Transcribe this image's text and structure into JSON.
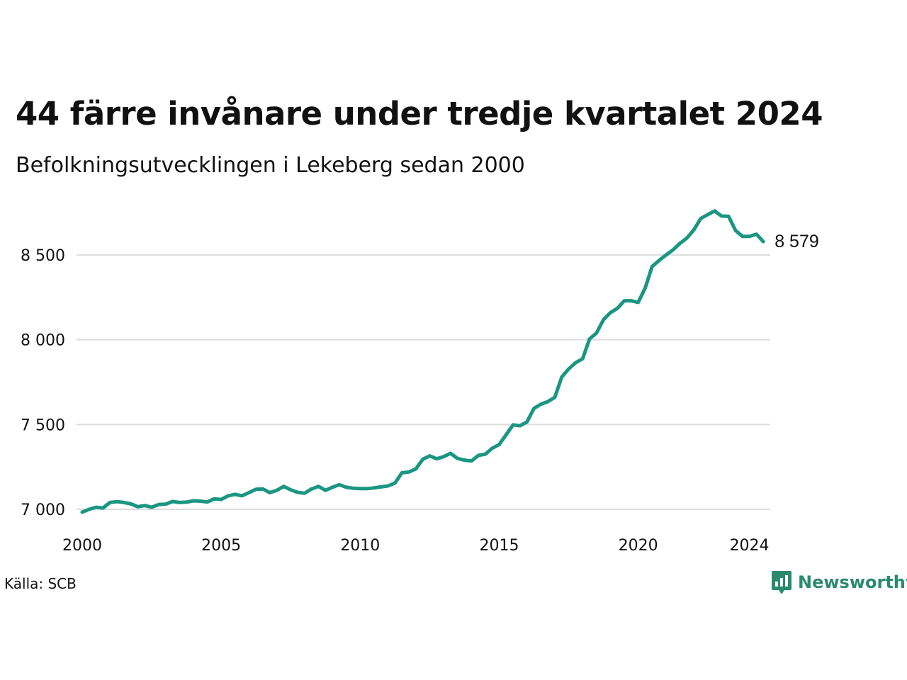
{
  "title": "44 färre invånare under tredje kvartalet 2024",
  "subtitle": "Befolkningsutvecklingen i Lekeberg sedan 2000",
  "source": "Källa: SCB",
  "brand": {
    "name": "Newsworthy",
    "icon": "newsworthy-logo-icon",
    "color": "#2b8a6e"
  },
  "chart_data": {
    "type": "line",
    "line_color": "#1a9682",
    "grid": true,
    "ylim": [
      6980,
      8760
    ],
    "yticks": [
      7000,
      7500,
      8000,
      8500
    ],
    "ytick_labels": [
      "7 000",
      "7 500",
      "8 000",
      "8 500"
    ],
    "xlim": [
      2000.0,
      2024.75
    ],
    "xticks": [
      2000,
      2005,
      2010,
      2015,
      2020,
      2024
    ],
    "xtick_labels": [
      "2000",
      "2005",
      "2010",
      "2015",
      "2020",
      "2024"
    ],
    "end_label": "8 579",
    "series": [
      {
        "start": 2000.0,
        "step": 0.25,
        "values": [
          6983,
          7000,
          7012,
          7008,
          7040,
          7045,
          7040,
          7032,
          7015,
          7022,
          7012,
          7028,
          7030,
          7046,
          7040,
          7042,
          7050,
          7048,
          7043,
          7062,
          7058,
          7080,
          7088,
          7080,
          7098,
          7118,
          7120,
          7098,
          7112,
          7135,
          7115,
          7100,
          7095,
          7120,
          7135,
          7112,
          7130,
          7145,
          7130,
          7124,
          7122,
          7122,
          7126,
          7132,
          7138,
          7155,
          7215,
          7220,
          7238,
          7295,
          7315,
          7298,
          7310,
          7330,
          7300,
          7290,
          7285,
          7318,
          7325,
          7360,
          7382,
          7440,
          7498,
          7493,
          7515,
          7595,
          7620,
          7635,
          7660,
          7780,
          7828,
          7865,
          7888,
          8005,
          8040,
          8118,
          8160,
          8185,
          8230,
          8230,
          8220,
          8305,
          8432,
          8468,
          8500,
          8530,
          8568,
          8600,
          8648,
          8715,
          8738,
          8760,
          8730,
          8728,
          8645,
          8610,
          8610,
          8623,
          8579
        ]
      }
    ]
  }
}
